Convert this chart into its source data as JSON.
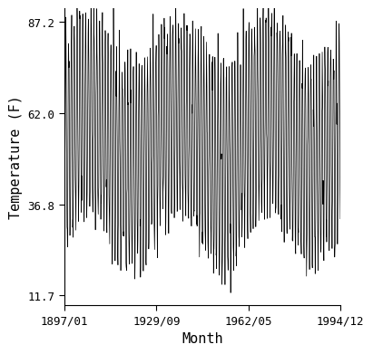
{
  "title": "",
  "xlabel": "Month",
  "ylabel": "Temperature (F)",
  "x_tick_labels": [
    "1897/01",
    "1929/09",
    "1962/05",
    "1994/12"
  ],
  "y_tick_values": [
    11.7,
    36.8,
    62.0,
    87.2
  ],
  "start_year": 1897,
  "start_month": 1,
  "end_year": 1994,
  "end_month": 12,
  "line_color": "#000000",
  "line_width": 0.5,
  "background_color": "#ffffff",
  "mean_temp": 54.4,
  "amplitude": 27.0,
  "noise_std": 4.0,
  "figsize": [
    4.0,
    4.0
  ],
  "dpi": 100,
  "ylim": [
    9.0,
    91.0
  ],
  "font_family": "monospace",
  "font_size_ticks": 9,
  "font_size_labels": 11
}
